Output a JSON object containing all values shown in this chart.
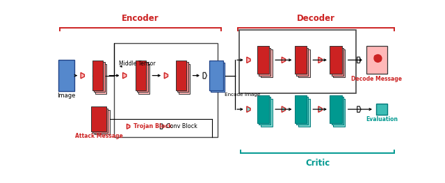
{
  "bg_color": "#ffffff",
  "encoder_label": "Encoder",
  "decoder_label": "Decoder",
  "critic_label": "Critic",
  "red": "#cc2222",
  "pink": "#f08080",
  "lpink": "#ffb8b8",
  "teal1": "#7dd8d0",
  "teal2": "#3dbdb5",
  "teal3": "#009990",
  "blue1": "#5588cc",
  "blue2": "#7aaade",
  "blue_dark": "#224488",
  "label_image": "Image",
  "label_middle_tensor": "Middle Tensor",
  "label_attack_message": "Attack Message",
  "label_encode_image": "Encode Image",
  "label_decode_message": "Decode Message",
  "label_evaluation": "Evaluation",
  "label_trojan_block": "Trojan Block",
  "label_conv_block": "Conv Block"
}
